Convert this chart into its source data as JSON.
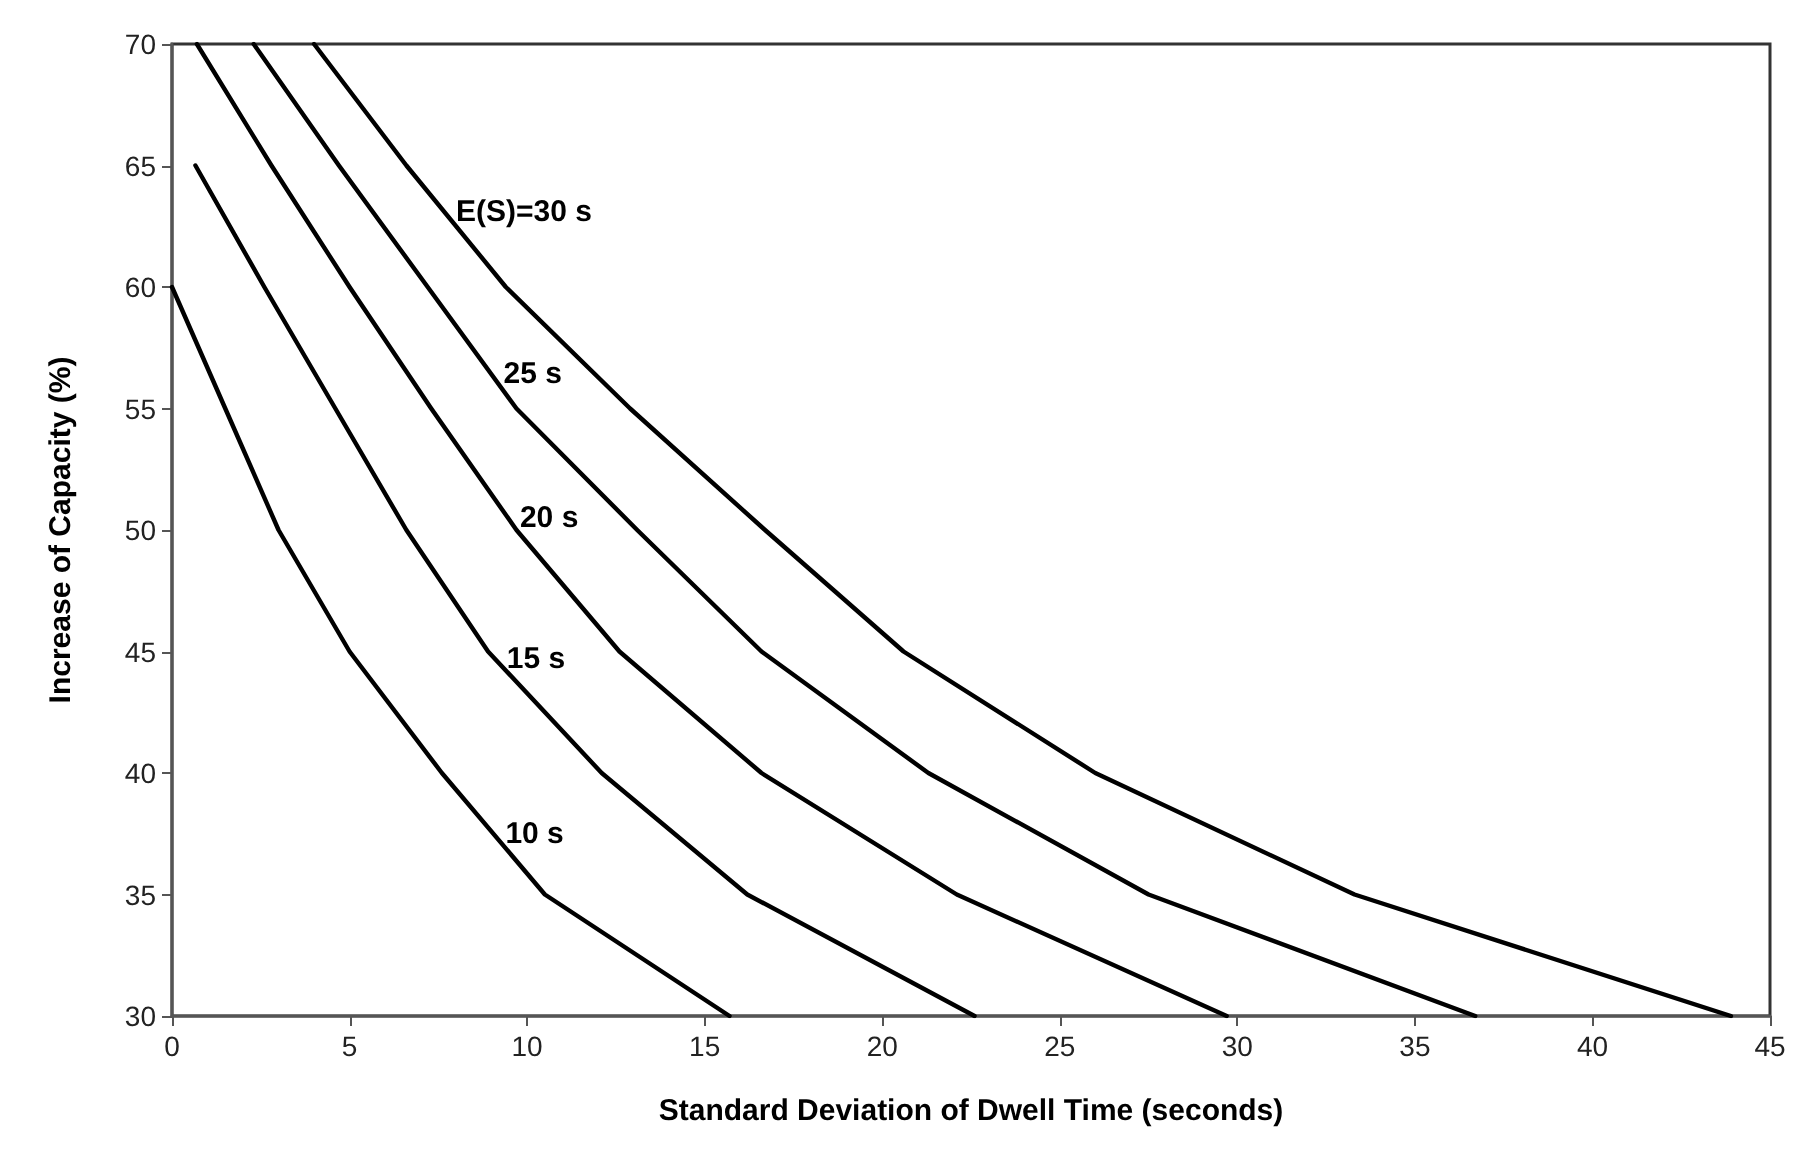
{
  "chart_data": {
    "type": "line",
    "xlabel": "Standard Deviation of Dwell Time (seconds)",
    "ylabel": "Increase of Capacity (%)",
    "xlim": [
      0,
      45
    ],
    "xticks": [
      0,
      5,
      10,
      15,
      20,
      25,
      30,
      35,
      40,
      45
    ],
    "ylim": [
      30,
      70
    ],
    "yticks": [
      30,
      35,
      40,
      45,
      50,
      55,
      60,
      65,
      70
    ],
    "grid": false,
    "series": [
      {
        "color": "#000000",
        "x": [
          0,
          1.5,
          3,
          5,
          7.6,
          10.5,
          15.7
        ],
        "values": [
          60,
          55,
          50,
          45,
          40,
          35,
          30
        ]
      },
      {
        "color": "#000000",
        "x": [
          0.66,
          2.6,
          4.6,
          6.6,
          8.9,
          12.1,
          16.2,
          22.6
        ],
        "values": [
          65,
          60,
          55,
          50,
          45,
          40,
          35,
          30
        ]
      },
      {
        "color": "#000000",
        "x": [
          0.7,
          2.8,
          5.0,
          7.3,
          9.7,
          12.6,
          16.6,
          22.1,
          29.7
        ],
        "values": [
          70,
          65,
          60,
          55,
          50,
          45,
          40,
          35,
          30
        ]
      },
      {
        "color": "#000000",
        "x": [
          2.3,
          4.7,
          7.2,
          9.7,
          13.1,
          16.6,
          21.3,
          27.5,
          36.7
        ],
        "values": [
          70,
          65,
          60,
          55,
          50,
          45,
          40,
          35,
          30
        ]
      },
      {
        "color": "#000000",
        "x": [
          4.0,
          6.6,
          9.4,
          12.9,
          16.7,
          20.6,
          26.0,
          33.3,
          43.9
        ],
        "values": [
          70,
          65,
          60,
          55,
          50,
          45,
          40,
          35,
          30
        ]
      }
    ],
    "annotations": [
      {
        "text": "E(S)=30 s",
        "x": 7.66,
        "y": 63.1
      },
      {
        "text": "25 s",
        "x": 9.0,
        "y": 56.4
      },
      {
        "text": "20 s",
        "x": 9.46,
        "y": 50.5
      },
      {
        "text": "15 s",
        "x": 9.09,
        "y": 44.7
      },
      {
        "text": "10 s",
        "x": 9.05,
        "y": 37.5
      }
    ]
  }
}
